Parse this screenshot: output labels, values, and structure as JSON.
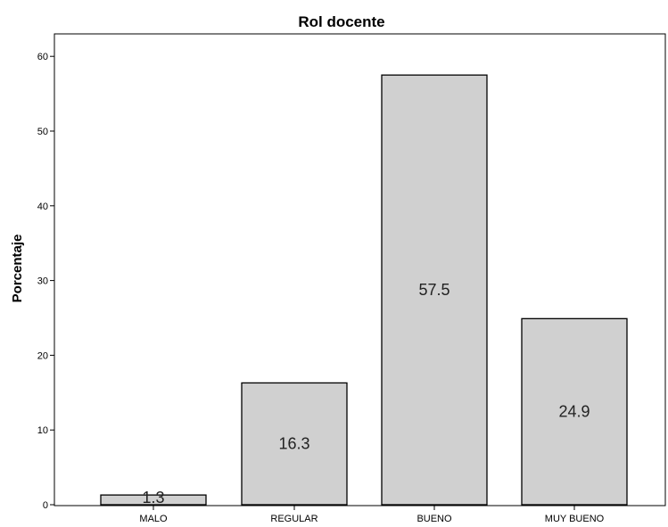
{
  "chart_data": {
    "type": "bar",
    "title": "Rol docente",
    "xlabel": "",
    "ylabel": "Porcentaje",
    "categories": [
      "MALO",
      "REGULAR",
      "BUENO",
      "MUY BUENO"
    ],
    "values": [
      1.3,
      16.3,
      57.5,
      24.9
    ],
    "data_labels": [
      "1.3",
      "16.3",
      "57.5",
      "24.9"
    ],
    "ylim": [
      0,
      63
    ],
    "yticks": [
      0,
      10,
      20,
      30,
      40,
      50,
      60
    ],
    "grid": false,
    "bar_color": "#d0d0d0",
    "bar_edge_color": "#000000"
  }
}
